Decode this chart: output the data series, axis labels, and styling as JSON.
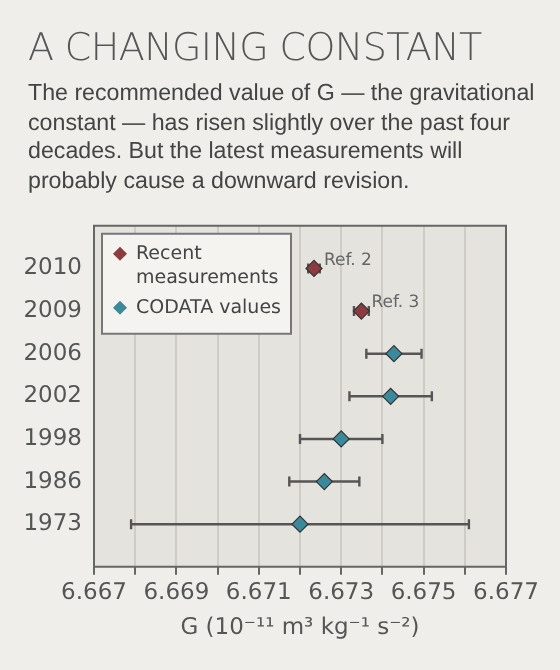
{
  "chart_data": {
    "type": "scatter",
    "orientation": "horizontal",
    "title": "A CHANGING CONSTANT",
    "subtitle": "The recommended value of G — the gravitational constant — has risen slightly over the past four decades. But the latest measurements will probably cause a downward revision.",
    "xlabel": "G (10⁻¹¹ m³ kg⁻¹ s⁻²)",
    "categories": [
      "2010",
      "2009",
      "2006",
      "2002",
      "1998",
      "1986",
      "1973"
    ],
    "series": [
      {
        "name": "Recent measurements",
        "color": "#8c3b3f",
        "values": [
          6.67234,
          6.67349,
          null,
          null,
          null,
          null,
          null
        ],
        "errors": [
          0.00014,
          0.00018,
          null,
          null,
          null,
          null,
          null
        ]
      },
      {
        "name": "CODATA values",
        "color": "#3a8a9c",
        "values": [
          null,
          null,
          6.67428,
          6.6742,
          6.673,
          6.67259,
          6.672
        ],
        "errors": [
          null,
          null,
          0.00067,
          0.001,
          0.001,
          0.00085,
          0.0041
        ]
      }
    ],
    "xlim": [
      6.667,
      6.677
    ],
    "xticks": [
      6.667,
      {
        "value": 6.668,
        "label": null
      },
      6.669,
      {
        "value": 6.67,
        "label": null
      },
      6.671,
      {
        "value": 6.672,
        "label": null
      },
      6.673,
      {
        "value": 6.674,
        "label": null
      },
      6.675,
      {
        "value": 6.676,
        "label": null
      },
      6.677
    ],
    "grid": "x",
    "legend": "top left",
    "marker": "diamond",
    "annotations": [
      {
        "text": "Ref. 2",
        "x": 6.67234,
        "y": "2010"
      },
      {
        "text": "Ref. 3",
        "x": 6.67349,
        "y": "2009"
      }
    ]
  }
}
